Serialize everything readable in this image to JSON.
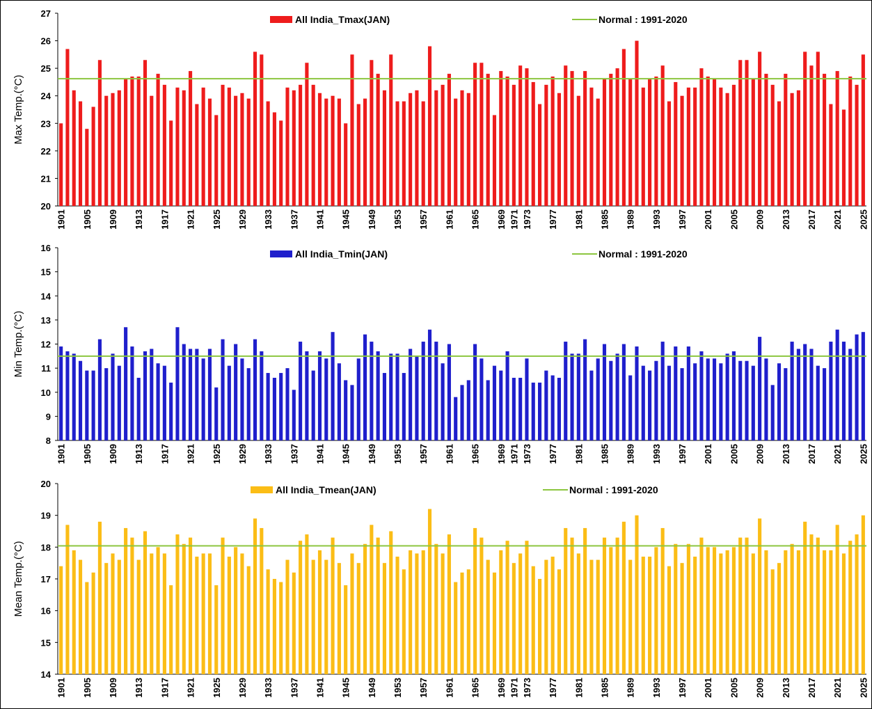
{
  "chart_data": [
    {
      "type": "bar",
      "ylabel": "Max Temp.(°C)",
      "ylim": [
        20,
        27
      ],
      "y_ticks": [
        20,
        21,
        22,
        23,
        24,
        25,
        26,
        27
      ],
      "x_start": 1901,
      "x_end": 2025,
      "x_tick_labels": [
        "1901",
        "1905",
        "1909",
        "1913",
        "1917",
        "1921",
        "1925",
        "1929",
        "1933",
        "1937",
        "1941",
        "1945",
        "1949",
        "1953",
        "1957",
        "1961",
        "1965",
        "1969",
        "1971",
        "1973",
        "1977",
        "1981",
        "1985",
        "1989",
        "1993",
        "1997",
        "2001",
        "2005",
        "2009",
        "2013",
        "2017",
        "2021",
        "2025"
      ],
      "bar_color": "#ee1c1c",
      "normal_color": "#8cc63f",
      "normal_value": 24.62,
      "legend": {
        "series": "All India_Tmax(JAN)",
        "normal": "Normal : 1991-2020"
      },
      "values": [
        23.0,
        25.7,
        24.2,
        23.8,
        22.8,
        23.6,
        25.3,
        24.0,
        24.1,
        24.2,
        24.6,
        24.7,
        24.7,
        25.3,
        24.0,
        24.8,
        24.4,
        23.1,
        24.3,
        24.2,
        24.9,
        23.7,
        24.3,
        23.9,
        23.3,
        24.4,
        24.3,
        24.0,
        24.1,
        23.9,
        25.6,
        25.5,
        23.8,
        23.4,
        23.1,
        24.3,
        24.2,
        24.4,
        25.2,
        24.4,
        24.1,
        23.9,
        24.0,
        23.9,
        23.0,
        25.5,
        23.7,
        23.9,
        25.3,
        24.8,
        24.2,
        25.5,
        23.8,
        23.8,
        24.1,
        24.2,
        23.8,
        25.8,
        24.2,
        24.4,
        24.8,
        23.9,
        24.2,
        24.1,
        25.2,
        25.2,
        24.8,
        23.3,
        24.9,
        24.7,
        24.4,
        25.1,
        25.0,
        24.5,
        23.7,
        24.4,
        24.7,
        24.1,
        25.1,
        24.9,
        24.0,
        24.9,
        24.3,
        23.9,
        24.6,
        24.8,
        25.0,
        25.7,
        24.6,
        26.0,
        24.3,
        24.6,
        24.7,
        25.1,
        23.8,
        24.5,
        24.0,
        24.3,
        24.3,
        25.0,
        24.7,
        24.6,
        24.3,
        24.1,
        24.4,
        25.3,
        25.3,
        24.6,
        25.6,
        24.8,
        24.4,
        23.8,
        24.8,
        24.1,
        24.2,
        25.6,
        25.1,
        25.6,
        24.8,
        23.7,
        24.9,
        23.5,
        24.7,
        24.4,
        25.5
      ]
    },
    {
      "type": "bar",
      "ylabel": "Min Temp.(°C)",
      "ylim": [
        8,
        16
      ],
      "y_ticks": [
        8,
        9,
        10,
        11,
        12,
        13,
        14,
        15,
        16
      ],
      "x_start": 1901,
      "x_end": 2025,
      "x_tick_labels": [
        "1901",
        "1905",
        "1909",
        "1913",
        "1917",
        "1921",
        "1925",
        "1929",
        "1933",
        "1937",
        "1941",
        "1945",
        "1949",
        "1953",
        "1957",
        "1961",
        "1965",
        "1969",
        "1971",
        "1973",
        "1977",
        "1981",
        "1985",
        "1989",
        "1993",
        "1997",
        "2001",
        "2005",
        "2009",
        "2013",
        "2017",
        "2021",
        "2025"
      ],
      "bar_color": "#1f1fcc",
      "normal_color": "#8cc63f",
      "normal_value": 11.5,
      "legend": {
        "series": "All India_Tmin(JAN)",
        "normal": "Normal : 1991-2020"
      },
      "values": [
        11.9,
        11.7,
        11.6,
        11.3,
        10.9,
        10.9,
        12.2,
        11.0,
        11.6,
        11.1,
        12.7,
        11.9,
        10.6,
        11.7,
        11.8,
        11.2,
        11.1,
        10.4,
        12.7,
        12.0,
        11.8,
        11.8,
        11.4,
        11.8,
        10.2,
        12.2,
        11.1,
        12.0,
        11.4,
        11.0,
        12.2,
        11.7,
        10.8,
        10.6,
        10.8,
        11.0,
        10.1,
        12.1,
        11.7,
        10.9,
        11.7,
        11.4,
        12.5,
        11.2,
        10.5,
        10.3,
        11.4,
        12.4,
        12.1,
        11.7,
        10.8,
        11.6,
        11.6,
        10.8,
        11.8,
        11.5,
        12.1,
        12.6,
        12.1,
        11.2,
        12.0,
        9.8,
        10.3,
        10.5,
        12.0,
        11.4,
        10.5,
        11.1,
        10.9,
        11.7,
        10.6,
        10.6,
        11.4,
        10.4,
        10.4,
        10.9,
        10.7,
        10.6,
        12.1,
        11.6,
        11.6,
        12.2,
        10.9,
        11.4,
        12.0,
        11.3,
        11.6,
        12.0,
        10.7,
        11.9,
        11.1,
        10.9,
        11.3,
        12.1,
        11.1,
        11.9,
        11.0,
        11.9,
        11.2,
        11.7,
        11.4,
        11.4,
        11.2,
        11.6,
        11.7,
        11.3,
        11.3,
        11.1,
        12.3,
        11.4,
        10.3,
        11.2,
        11.0,
        12.1,
        11.8,
        12.0,
        11.8,
        11.1,
        11.0,
        12.1,
        12.6,
        12.1,
        11.8,
        12.4,
        12.5
      ]
    },
    {
      "type": "bar",
      "ylabel": "Mean Temp.(°C)",
      "ylim": [
        14,
        20
      ],
      "y_ticks": [
        14,
        15,
        16,
        17,
        18,
        19,
        20
      ],
      "x_start": 1901,
      "x_end": 2025,
      "x_tick_labels": [
        "1901",
        "1905",
        "1909",
        "1913",
        "1917",
        "1921",
        "1925",
        "1929",
        "1933",
        "1937",
        "1941",
        "1945",
        "1949",
        "1953",
        "1957",
        "1961",
        "1965",
        "1969",
        "1971",
        "1973",
        "1977",
        "1981",
        "1985",
        "1989",
        "1993",
        "1997",
        "2001",
        "2005",
        "2009",
        "2013",
        "2017",
        "2021",
        "2025"
      ],
      "bar_color": "#fbbd16",
      "normal_color": "#8cc63f",
      "normal_value": 18.04,
      "legend": {
        "series": "All India_Tmean(JAN)",
        "normal": "Normal : 1991-2020"
      },
      "values": [
        17.4,
        18.7,
        17.9,
        17.6,
        16.9,
        17.2,
        18.8,
        17.5,
        17.8,
        17.6,
        18.6,
        18.3,
        17.6,
        18.5,
        17.8,
        18.0,
        17.8,
        16.8,
        18.4,
        18.1,
        18.3,
        17.7,
        17.8,
        17.8,
        16.8,
        18.3,
        17.7,
        18.0,
        17.8,
        17.4,
        18.9,
        18.6,
        17.3,
        17.0,
        16.9,
        17.6,
        17.2,
        18.2,
        18.4,
        17.6,
        17.9,
        17.6,
        18.3,
        17.5,
        16.8,
        17.8,
        17.5,
        18.1,
        18.7,
        18.3,
        17.5,
        18.5,
        17.7,
        17.3,
        17.9,
        17.8,
        17.9,
        19.2,
        18.1,
        17.8,
        18.4,
        16.9,
        17.2,
        17.3,
        18.6,
        18.3,
        17.6,
        17.2,
        17.9,
        18.2,
        17.5,
        17.8,
        18.2,
        17.4,
        17.0,
        17.6,
        17.7,
        17.3,
        18.6,
        18.3,
        17.8,
        18.6,
        17.6,
        17.6,
        18.3,
        18.0,
        18.3,
        18.8,
        17.6,
        19.0,
        17.7,
        17.7,
        18.0,
        18.6,
        17.4,
        18.1,
        17.5,
        18.1,
        17.7,
        18.3,
        18.0,
        18.0,
        17.8,
        17.9,
        18.0,
        18.3,
        18.3,
        17.8,
        18.9,
        17.9,
        17.3,
        17.5,
        17.9,
        18.1,
        17.9,
        18.8,
        18.4,
        18.3,
        17.9,
        17.9,
        18.7,
        17.8,
        18.2,
        18.4,
        19.0
      ]
    }
  ]
}
